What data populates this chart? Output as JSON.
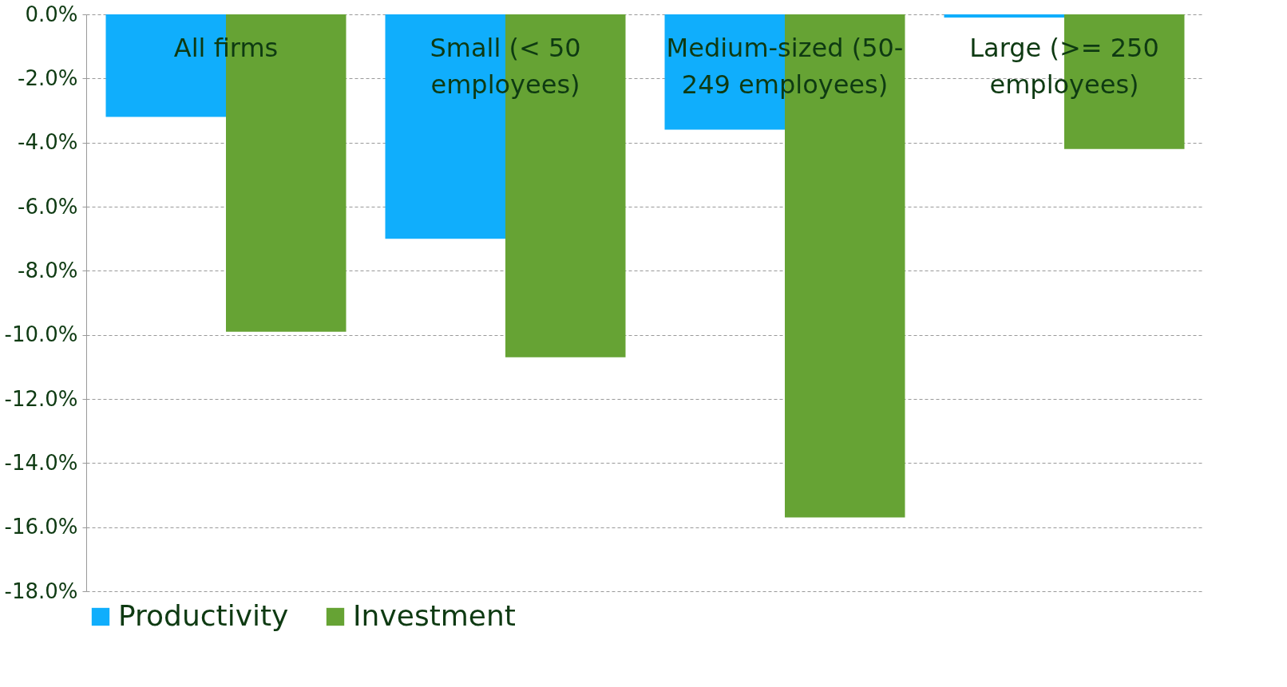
{
  "chart_data": {
    "type": "bar",
    "categories": [
      "All firms",
      "Small (< 50 employees)",
      "Medium-sized (50-249 employees)",
      "Large (>= 250 employees)"
    ],
    "series": [
      {
        "name": "Productivity",
        "color": "#10aefc",
        "values": [
          -3.2,
          -7.0,
          -3.6,
          -0.1
        ]
      },
      {
        "name": "Investment",
        "color": "#66a334",
        "values": [
          -9.9,
          -10.7,
          -15.7,
          -4.2
        ]
      }
    ],
    "ylim": [
      -18,
      0
    ],
    "yticks": [
      {
        "value": 0,
        "label": "0.0%"
      },
      {
        "value": -2,
        "label": "-2.0%"
      },
      {
        "value": -4,
        "label": "-4.0%"
      },
      {
        "value": -6,
        "label": "-6.0%"
      },
      {
        "value": -8,
        "label": "-8.0%"
      },
      {
        "value": -10,
        "label": "-10.0%"
      },
      {
        "value": -12,
        "label": "-12.0%"
      },
      {
        "value": -14,
        "label": "-14.0%"
      },
      {
        "value": -16,
        "label": "-16.0%"
      },
      {
        "value": -18,
        "label": "-18.0%"
      }
    ],
    "grid": "y",
    "legend": "bottom"
  }
}
